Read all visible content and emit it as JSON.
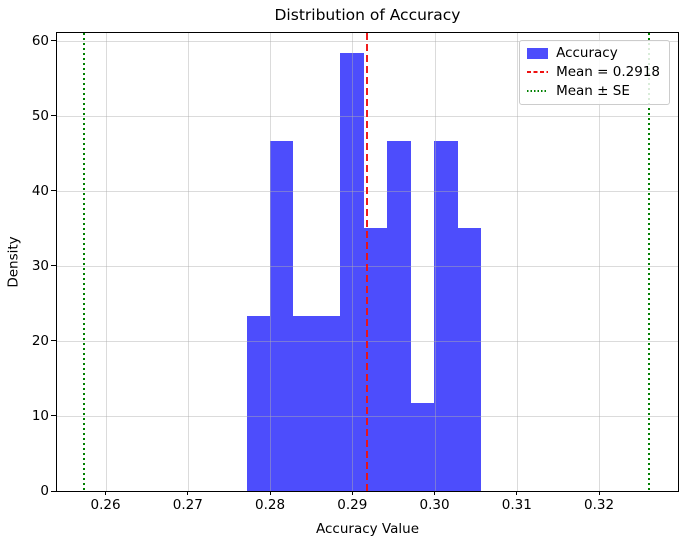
{
  "chart_data": {
    "type": "bar",
    "chart_kind": "histogram",
    "title": "Distribution of Accuracy",
    "xlabel": "Accuracy Value",
    "ylabel": "Density",
    "xlim": [
      0.2541,
      0.3296
    ],
    "ylim": [
      0,
      61.0
    ],
    "x_ticks": [
      0.26,
      0.27,
      0.28,
      0.29,
      0.3,
      0.31,
      0.32
    ],
    "x_tick_labels": [
      "0.26",
      "0.27",
      "0.28",
      "0.29",
      "0.30",
      "0.31",
      "0.32"
    ],
    "y_ticks": [
      0,
      10,
      20,
      30,
      40,
      50,
      60
    ],
    "grid": true,
    "grid_above_bars": true,
    "bin_edges": [
      0.27715,
      0.28,
      0.28285,
      0.2857,
      0.28855,
      0.2914,
      0.29425,
      0.2971,
      0.29995,
      0.3028,
      0.30565
    ],
    "densities": [
      23.3,
      46.6,
      23.3,
      23.3,
      58.3,
      35.0,
      46.6,
      11.7,
      46.6,
      35.0
    ],
    "mean": 0.2918,
    "se_lines": [
      0.2574,
      0.3261
    ],
    "legend": {
      "position": "upper right",
      "items": [
        {
          "label": "Accuracy",
          "swatch": "patch",
          "color": "#4d4dfc"
        },
        {
          "label": "Mean = 0.2918",
          "swatch": "dashed-line",
          "color": "#ee1111"
        },
        {
          "label": "Mean ± SE",
          "swatch": "dotted-line",
          "color": "#008000"
        }
      ]
    },
    "colors": {
      "bar": "#4d4dfc",
      "mean_line": "#ee1111",
      "se_line": "#008000",
      "grid": "#b0b0b0",
      "axes": "#000000",
      "background": "#ffffff"
    }
  }
}
